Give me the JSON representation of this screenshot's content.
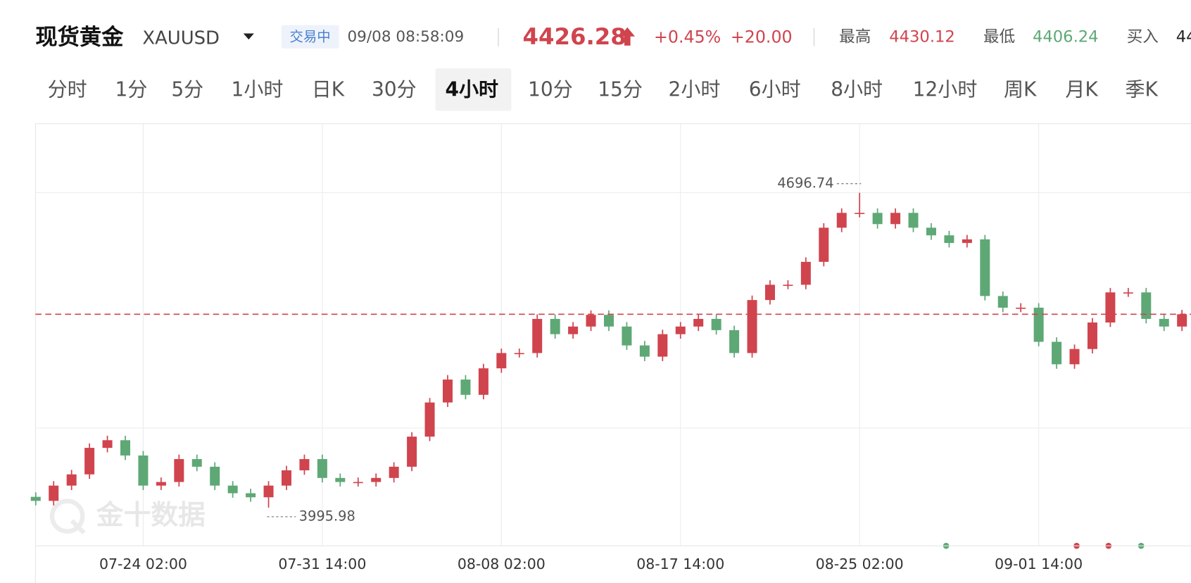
{
  "header": {
    "name": "现货黄金",
    "symbol": "XAUUSD",
    "status": "交易中",
    "time": "09/08 08:58:09",
    "price": 4426.28,
    "change_pct": "+0.45%",
    "change": "+20.00",
    "high_label": "最高",
    "high": 4430.12,
    "low_label": "最低",
    "low": 4406.24,
    "buy_label": "买入",
    "buy": "44"
  },
  "tabs": [
    "分时",
    "1分",
    "5分",
    "1小时",
    "日K",
    "30分",
    "4小时",
    "10分",
    "15分",
    "2小时",
    "6小时",
    "8小时",
    "12小时",
    "周K",
    "月K",
    "季K"
  ],
  "active_tab": 6,
  "watermark": "金十数据",
  "chart_data": {
    "type": "candlestick",
    "categories": [
      null,
      null,
      null,
      null,
      null,
      null,
      "07-24 02:00",
      null,
      null,
      null,
      null,
      null,
      null,
      null,
      null,
      null,
      "07-31 14:00",
      null,
      null,
      null,
      null,
      null,
      null,
      null,
      null,
      null,
      "08-08 02:00",
      null,
      null,
      null,
      null,
      null,
      null,
      null,
      null,
      null,
      "08-17 14:00",
      null,
      null,
      null,
      null,
      null,
      null,
      null,
      null,
      null,
      "08-25 02:00",
      null,
      null,
      null,
      null,
      null,
      null,
      null,
      null,
      null,
      "09-01 14:00",
      null,
      null,
      null,
      null,
      null,
      null,
      null,
      null
    ],
    "open": [
      4020,
      4011,
      4045,
      4070,
      4129,
      4146,
      4112,
      4045,
      4053,
      4104,
      4087,
      4045,
      4028,
      4019,
      4045,
      4079,
      4104,
      4062,
      4053,
      4053,
      4062,
      4087,
      4154,
      4230,
      4281,
      4247,
      4306,
      4340,
      4340,
      4416,
      4382,
      4399,
      4425,
      4399,
      4357,
      4332,
      4382,
      4399,
      4416,
      4391,
      4340,
      4458,
      4492,
      4492,
      4543,
      4619,
      4652,
      4652,
      4627,
      4652,
      4619,
      4602,
      4585,
      4593,
      4467,
      4441,
      4441,
      4365,
      4315,
      4349,
      4408,
      4475,
      4475,
      4416,
      4399
    ],
    "high": [
      4030,
      4055,
      4080,
      4139,
      4156,
      4156,
      4122,
      4063,
      4114,
      4114,
      4097,
      4055,
      4038,
      4055,
      4089,
      4114,
      4114,
      4072,
      4063,
      4072,
      4097,
      4164,
      4240,
      4291,
      4291,
      4316,
      4350,
      4350,
      4426,
      4426,
      4409,
      4435,
      4435,
      4409,
      4367,
      4392,
      4409,
      4426,
      4426,
      4401,
      4468,
      4502,
      4502,
      4553,
      4629,
      4662,
      4696.74,
      4662,
      4662,
      4662,
      4629,
      4612,
      4603,
      4603,
      4477,
      4451,
      4451,
      4375,
      4359,
      4418,
      4485,
      4485,
      4485,
      4426,
      4436
    ],
    "low": [
      4001,
      4001,
      4035,
      4060,
      4119,
      4102,
      4035,
      4035,
      4043,
      4077,
      4035,
      4018,
      4009,
      3995.98,
      4035,
      4069,
      4052,
      4043,
      4043,
      4043,
      4052,
      4077,
      4144,
      4220,
      4237,
      4237,
      4296,
      4330,
      4330,
      4372,
      4372,
      4389,
      4389,
      4347,
      4322,
      4322,
      4372,
      4389,
      4381,
      4330,
      4330,
      4448,
      4482,
      4482,
      4533,
      4609,
      4642,
      4617,
      4617,
      4609,
      4592,
      4575,
      4575,
      4457,
      4431,
      4431,
      4355,
      4305,
      4305,
      4339,
      4398,
      4465,
      4406,
      4389,
      4389
    ],
    "close": [
      4011,
      4045,
      4070,
      4129,
      4146,
      4112,
      4045,
      4053,
      4104,
      4087,
      4045,
      4028,
      4019,
      4045,
      4079,
      4104,
      4062,
      4053,
      4053,
      4062,
      4087,
      4154,
      4230,
      4281,
      4247,
      4306,
      4340,
      4340,
      4416,
      4382,
      4399,
      4425,
      4399,
      4357,
      4332,
      4382,
      4399,
      4416,
      4391,
      4340,
      4458,
      4492,
      4492,
      4543,
      4619,
      4652,
      4652,
      4627,
      4652,
      4619,
      4602,
      4585,
      4593,
      4467,
      4441,
      4441,
      4365,
      4315,
      4349,
      4408,
      4475,
      4475,
      4416,
      4399,
      4426.28
    ],
    "up_color": "#d0444e",
    "down_color": "#5ea876",
    "ylim": [
      3911,
      4847
    ],
    "yticks": [
      4173,
      4697
    ],
    "grid": true
  }
}
